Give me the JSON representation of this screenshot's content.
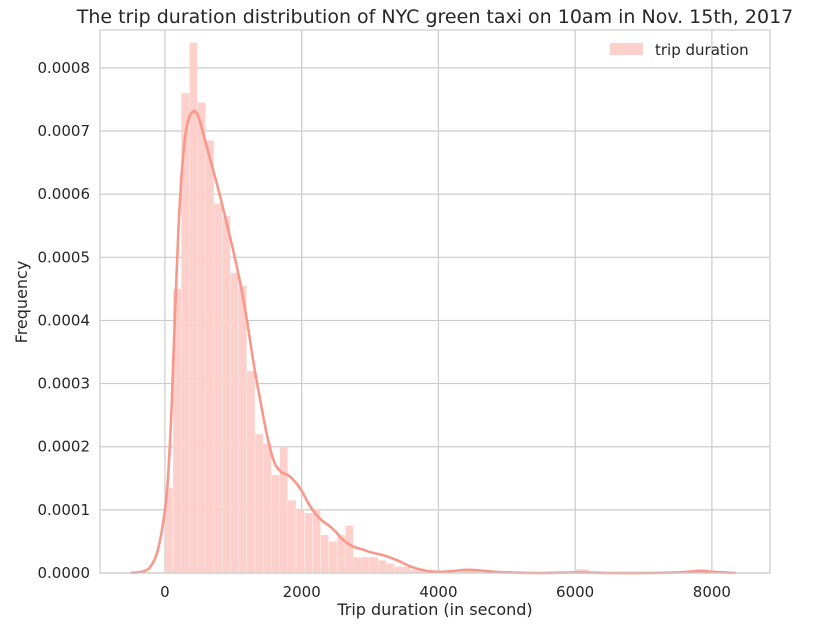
{
  "chart_data": {
    "type": "bar",
    "title": "The trip duration distribution of NYC green taxi on 10am in Nov. 15th, 2017",
    "xlabel": "Trip duration (in second)",
    "ylabel": "Frequency",
    "xlim": [
      -950,
      8850
    ],
    "ylim": [
      0,
      0.00086
    ],
    "xticks": [
      0,
      2000,
      4000,
      6000,
      8000
    ],
    "xtick_labels": [
      "0",
      "2000",
      "4000",
      "6000",
      "8000"
    ],
    "yticks": [
      0,
      0.0001,
      0.0002,
      0.0003,
      0.0004,
      0.0005,
      0.0006,
      0.0007,
      0.0008
    ],
    "ytick_labels": [
      "0.0000",
      "0.0001",
      "0.0002",
      "0.0003",
      "0.0004",
      "0.0005",
      "0.0006",
      "0.0007",
      "0.0008"
    ],
    "grid": true,
    "legend_position": "top-right",
    "series": [
      {
        "name": "trip duration",
        "kind": "histogram",
        "color": "#fdd0cb",
        "bin_edges": [
          0,
          120,
          240,
          360,
          480,
          600,
          720,
          840,
          960,
          1080,
          1200,
          1320,
          1440,
          1560,
          1680,
          1800,
          1920,
          2040,
          2160,
          2280,
          2400,
          2520,
          2640,
          2760,
          2880,
          3000,
          3120,
          3240,
          3360,
          3480,
          3600,
          3720,
          3840,
          3960
        ],
        "values": [
          0.000135,
          0.00045,
          0.00076,
          0.00084,
          0.000745,
          0.000685,
          0.000585,
          0.000565,
          0.000475,
          0.000455,
          0.00032,
          0.00022,
          0.000205,
          0.000155,
          0.0002,
          0.000115,
          0.0001,
          9.5e-05,
          0.0001,
          6e-05,
          5e-05,
          6e-05,
          7.5e-05,
          2.5e-05,
          2.5e-05,
          2.5e-05,
          2e-05,
          1.5e-05,
          1e-05,
          1e-05,
          5e-06,
          5e-06,
          3e-06
        ],
        "outlier_bins": [
          {
            "x0": 4360,
            "x1": 4560,
            "value": 4e-06
          },
          {
            "x0": 6000,
            "x1": 6200,
            "value": 6e-06
          },
          {
            "x0": 7760,
            "x1": 7960,
            "value": 6e-06
          }
        ]
      },
      {
        "kind": "kde",
        "color": "#fa978b",
        "x": [
          -500,
          -300,
          -200,
          -100,
          0,
          50,
          100,
          150,
          200,
          250,
          300,
          350,
          400,
          450,
          500,
          550,
          600,
          650,
          700,
          800,
          900,
          1000,
          1100,
          1200,
          1300,
          1400,
          1500,
          1600,
          1700,
          1800,
          1900,
          2000,
          2100,
          2200,
          2300,
          2400,
          2500,
          2600,
          2700,
          2800,
          2900,
          3000,
          3200,
          3400,
          3600,
          3800,
          4000,
          4200,
          4400,
          4600,
          4800,
          5000,
          5500,
          6000,
          6500,
          7000,
          7500,
          7800,
          8000,
          8350
        ],
        "values": [
          0,
          3e-06,
          1.2e-05,
          3.8e-05,
          0.0001,
          0.00016,
          0.00027,
          0.00042,
          0.00055,
          0.00064,
          0.000695,
          0.00072,
          0.00073,
          0.00073,
          0.00072,
          0.0007,
          0.00068,
          0.00066,
          0.00064,
          0.0006,
          0.000555,
          0.00051,
          0.00046,
          0.0004,
          0.00033,
          0.00027,
          0.000215,
          0.000175,
          0.00016,
          0.000155,
          0.000145,
          0.00013,
          0.00011,
          9.4e-05,
          8.3e-05,
          7.5e-05,
          6.5e-05,
          5.3e-05,
          4.5e-05,
          4e-05,
          3.7e-05,
          3.3e-05,
          2.8e-05,
          2e-05,
          1e-05,
          4e-06,
          2e-06,
          3e-06,
          5e-06,
          4e-06,
          2e-06,
          1e-06,
          0,
          1e-06,
          0,
          0,
          1e-06,
          3e-06,
          2e-06,
          0
        ]
      }
    ]
  }
}
